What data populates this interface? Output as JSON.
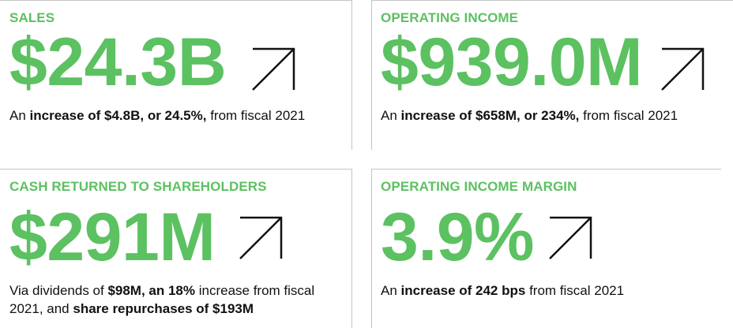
{
  "sales": {
    "label": "SALES",
    "value": "$24.3B",
    "desc_1": "An ",
    "desc_2": "increase of $4.8B, or 24.5%,",
    "desc_3": " from fiscal 2021"
  },
  "operating_income": {
    "label": "OPERATING INCOME",
    "value": "$939.0M",
    "desc_1": "An ",
    "desc_2": "increase of $658M, or 234%,",
    "desc_3": " from fiscal 2021"
  },
  "cash_returned": {
    "label": "CASH RETURNED TO SHAREHOLDERS",
    "value": "$291M",
    "desc_1": "Via dividends of ",
    "desc_2": "$98M, an 18%",
    "desc_3": " increase from fiscal 2021, and ",
    "desc_4": "share repurchases of $193M"
  },
  "operating_margin": {
    "label": "OPERATING INCOME MARGIN",
    "value": "3.9%",
    "desc_1": "An ",
    "desc_2": "increase of 242 bps",
    "desc_3": " from fiscal 2021"
  },
  "icons": {
    "trend": "arrow-up-right-icon"
  },
  "colors": {
    "accent": "#5cc161",
    "text": "#111111",
    "rule": "#c4c4c4"
  }
}
